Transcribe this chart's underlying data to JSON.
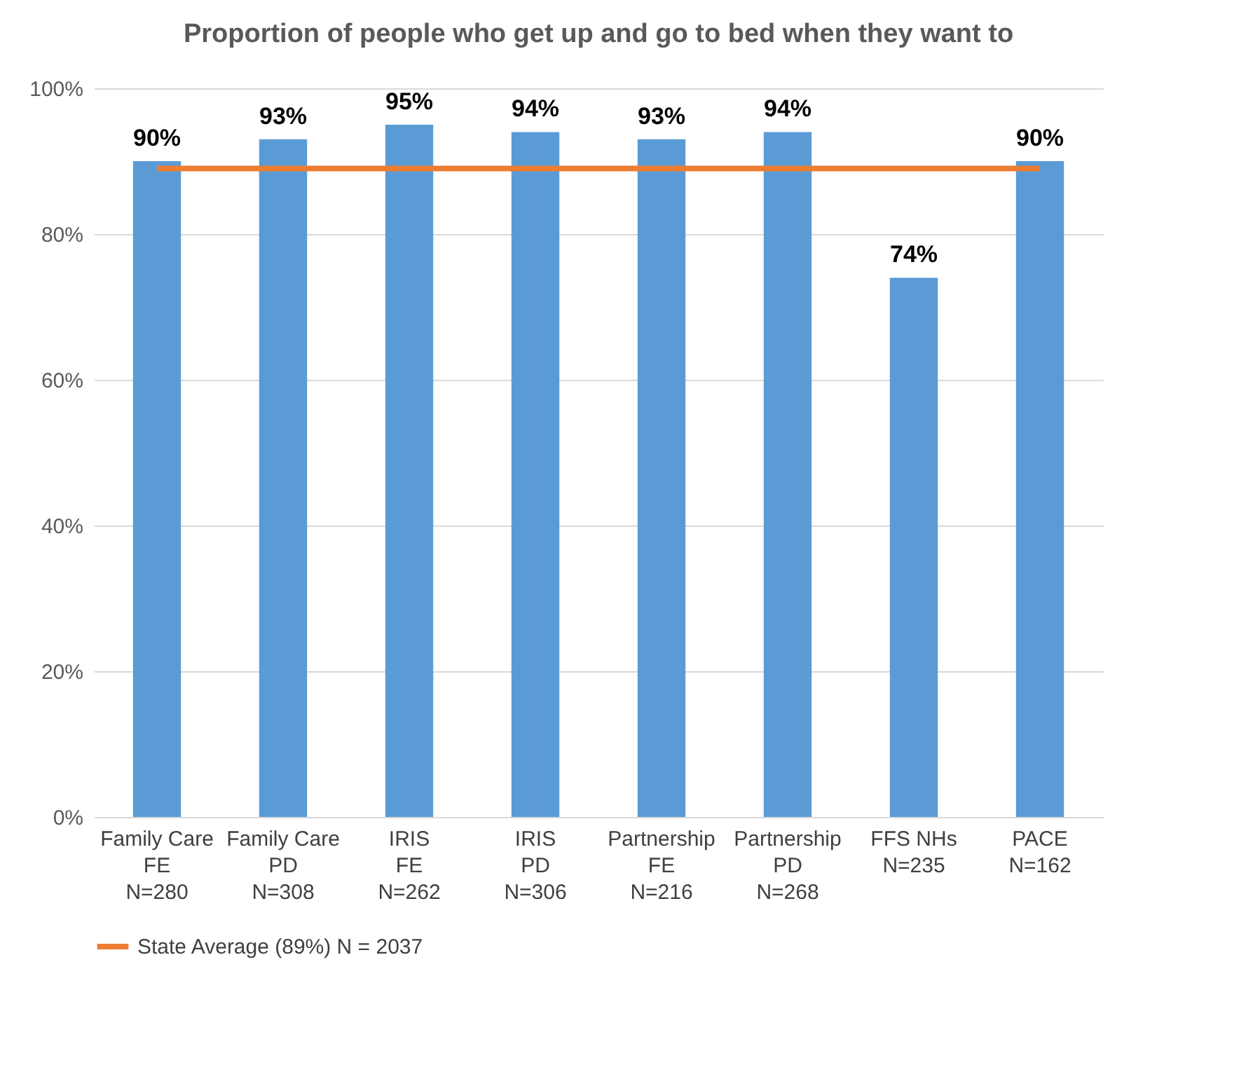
{
  "chart_data": {
    "type": "bar",
    "title": "Proportion of people who get up and go to bed when they want to",
    "categories": [
      "Family Care\nFE\nN=280",
      "Family Care\nPD\nN=308",
      "IRIS\nFE\nN=262",
      "IRIS\nPD\nN=306",
      "Partnership\nFE\nN=216",
      "Partnership\nPD\nN=268",
      "FFS NHs\nN=235",
      "PACE\nN=162"
    ],
    "series": [
      {
        "color": "#5b9bd5",
        "values": [
          90,
          93,
          95,
          94,
          93,
          94,
          74,
          90
        ],
        "value_labels": [
          "90%",
          "93%",
          "95%",
          "94%",
          "93%",
          "94%",
          "74%",
          "90%"
        ]
      },
      {
        "type": "line",
        "name": "State Average (89%) N = 2037",
        "color": "#ed7d31",
        "values": [
          89,
          89,
          89,
          89,
          89,
          89,
          89,
          89
        ]
      }
    ],
    "ylim": [
      0,
      100
    ],
    "yticks": [
      {
        "value": 0,
        "label": "0%"
      },
      {
        "value": 20,
        "label": "20%"
      },
      {
        "value": 40,
        "label": "40%"
      },
      {
        "value": 60,
        "label": "60%"
      },
      {
        "value": 80,
        "label": "80%"
      },
      {
        "value": 100,
        "label": "100%"
      }
    ],
    "grid": "y",
    "legend": "bottom",
    "marker": "none",
    "line_style": "solid"
  }
}
